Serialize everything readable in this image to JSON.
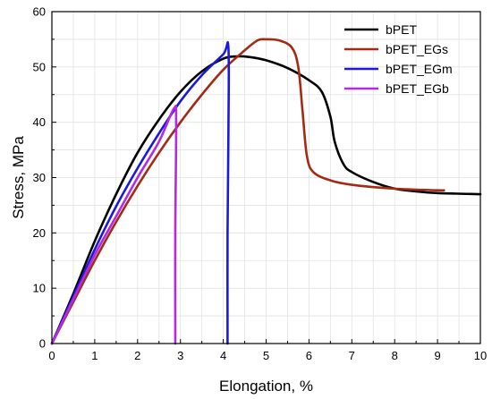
{
  "chart_data": {
    "type": "line",
    "xlabel": "Elongation, %",
    "ylabel": "Stress, MPa",
    "xlim": [
      0,
      10
    ],
    "ylim": [
      0,
      60
    ],
    "x_ticks": [
      0,
      1,
      2,
      3,
      4,
      5,
      6,
      7,
      8,
      9,
      10
    ],
    "y_ticks": [
      0,
      10,
      20,
      30,
      40,
      50,
      60
    ],
    "grid": true,
    "legend_position": "top-right",
    "series": [
      {
        "name": "bPET",
        "color": "#000000",
        "points": [
          [
            0,
            0
          ],
          [
            0.5,
            9
          ],
          [
            1,
            18.5
          ],
          [
            1.5,
            27
          ],
          [
            2,
            34.5
          ],
          [
            2.5,
            40.5
          ],
          [
            3,
            45.5
          ],
          [
            3.5,
            49.2
          ],
          [
            4,
            51.5
          ],
          [
            4.3,
            51.9
          ],
          [
            4.6,
            51.8
          ],
          [
            5,
            51.2
          ],
          [
            5.5,
            49.8
          ],
          [
            6,
            47.6
          ],
          [
            6.3,
            45.5
          ],
          [
            6.5,
            41
          ],
          [
            6.6,
            36.5
          ],
          [
            6.8,
            32.5
          ],
          [
            7,
            31
          ],
          [
            7.5,
            29.2
          ],
          [
            8,
            28
          ],
          [
            8.5,
            27.5
          ],
          [
            9,
            27.2
          ],
          [
            10,
            27
          ]
        ]
      },
      {
        "name": "bPET_EGs",
        "color": "#a52a14",
        "points": [
          [
            0,
            0
          ],
          [
            0.5,
            7.5
          ],
          [
            1,
            15
          ],
          [
            1.5,
            22
          ],
          [
            2,
            28.5
          ],
          [
            2.5,
            34.5
          ],
          [
            3,
            40
          ],
          [
            3.5,
            45
          ],
          [
            4,
            49.5
          ],
          [
            4.5,
            53
          ],
          [
            4.8,
            54.8
          ],
          [
            5,
            55
          ],
          [
            5.3,
            54.8
          ],
          [
            5.6,
            53.5
          ],
          [
            5.75,
            50
          ],
          [
            5.85,
            42
          ],
          [
            5.95,
            34
          ],
          [
            6.1,
            31
          ],
          [
            6.5,
            29.5
          ],
          [
            7,
            28.7
          ],
          [
            8,
            28
          ],
          [
            9,
            27.7
          ],
          [
            9.15,
            27.7
          ]
        ]
      },
      {
        "name": "bPET_EGm",
        "color": "#1a1adc",
        "points": [
          [
            0,
            0
          ],
          [
            0.5,
            8.5
          ],
          [
            1,
            17
          ],
          [
            1.5,
            24.8
          ],
          [
            2,
            31.7
          ],
          [
            2.5,
            38
          ],
          [
            3,
            43.8
          ],
          [
            3.5,
            48.5
          ],
          [
            4,
            52.3
          ],
          [
            4.12,
            53.5
          ],
          [
            4.12,
            38
          ],
          [
            4.1,
            20
          ],
          [
            4.1,
            0
          ]
        ]
      },
      {
        "name": "bPET_EGb",
        "color": "#b428e6",
        "points": [
          [
            0,
            0
          ],
          [
            0.5,
            8
          ],
          [
            1,
            16
          ],
          [
            1.5,
            23
          ],
          [
            2,
            30
          ],
          [
            2.5,
            36.5
          ],
          [
            2.85,
            42.5
          ],
          [
            2.9,
            40
          ],
          [
            2.88,
            20
          ],
          [
            2.88,
            0
          ]
        ]
      }
    ]
  }
}
